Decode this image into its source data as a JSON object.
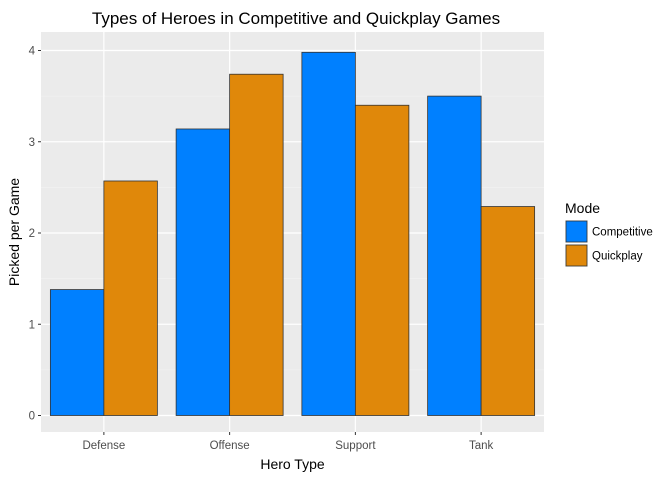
{
  "chart_data": {
    "type": "bar",
    "title": "Types of Heroes in Competitive and Quickplay Games",
    "xlabel": "Hero Type",
    "ylabel": "Picked per Game",
    "categories": [
      "Defense",
      "Offense",
      "Support",
      "Tank"
    ],
    "series": [
      {
        "name": "Competitive",
        "color": "#0080FF",
        "values": [
          1.38,
          3.14,
          3.98,
          3.5
        ]
      },
      {
        "name": "Quickplay",
        "color": "#E0880A",
        "values": [
          2.57,
          3.74,
          3.4,
          2.29
        ]
      }
    ],
    "ylim": [
      0,
      4.2
    ],
    "yticks": [
      0,
      1,
      2,
      3,
      4
    ],
    "grid": true,
    "legend": {
      "title": "Mode",
      "position": "right"
    }
  }
}
